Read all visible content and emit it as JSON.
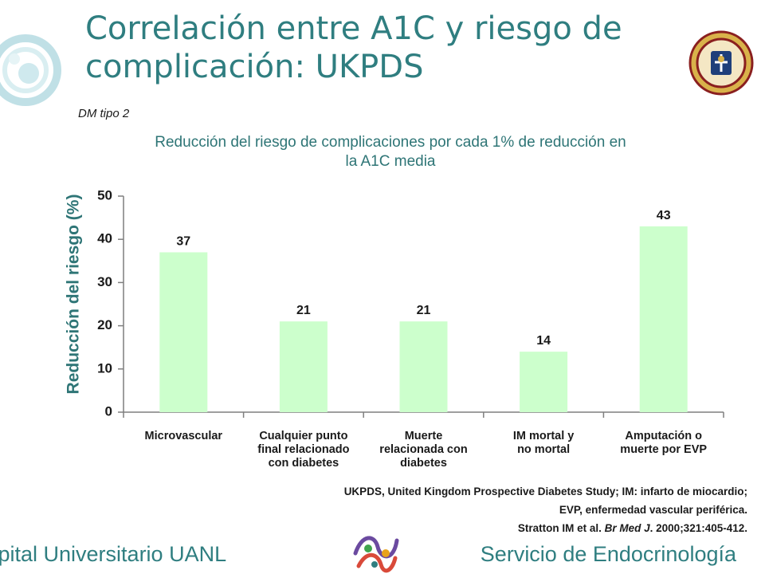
{
  "slide": {
    "title_line1": "Correlación entre A1C y riesgo de",
    "title_line2": "complicación: UKPDS",
    "dm_label": "DM tipo 2",
    "footnote_line1": "UKPDS, United Kingdom Prospective Diabetes Study; IM: infarto de miocardio;",
    "footnote_line2": "EVP, enfermedad vascular periférica.",
    "footnote_ref_prefix": "Stratton IM et al. ",
    "footnote_ref_journal": "Br Med J",
    "footnote_ref_suffix": ". 2000;321:405-412.",
    "footer_left": "spital Universitario UANL",
    "footer_right": "Servicio de Endocrinología",
    "seal_icon": "university-seal-icon",
    "logo_icon": "endocrinology-logo-icon",
    "accent_color": "#2f7e80"
  },
  "chart_data": {
    "type": "bar",
    "title_line1": "Reducción del riesgo de complicaciones por cada 1% de reducción en",
    "title_line2": "la A1C media",
    "ylabel": "Reducción del riesgo (%)",
    "xlabel": "",
    "ylim": [
      0,
      50
    ],
    "yticks": [
      0,
      10,
      20,
      30,
      40,
      50
    ],
    "categories": [
      [
        "Microvascular"
      ],
      [
        "Cualquier punto",
        "final relacionado",
        "con diabetes"
      ],
      [
        "Muerte",
        "relacionada con",
        "diabetes"
      ],
      [
        "IM mortal y",
        "no mortal"
      ],
      [
        "Amputación o",
        "muerte por EVP"
      ]
    ],
    "values": [
      37,
      21,
      21,
      14,
      43
    ],
    "bar_color": "#ccffcc",
    "grid": false,
    "legend": "none"
  }
}
